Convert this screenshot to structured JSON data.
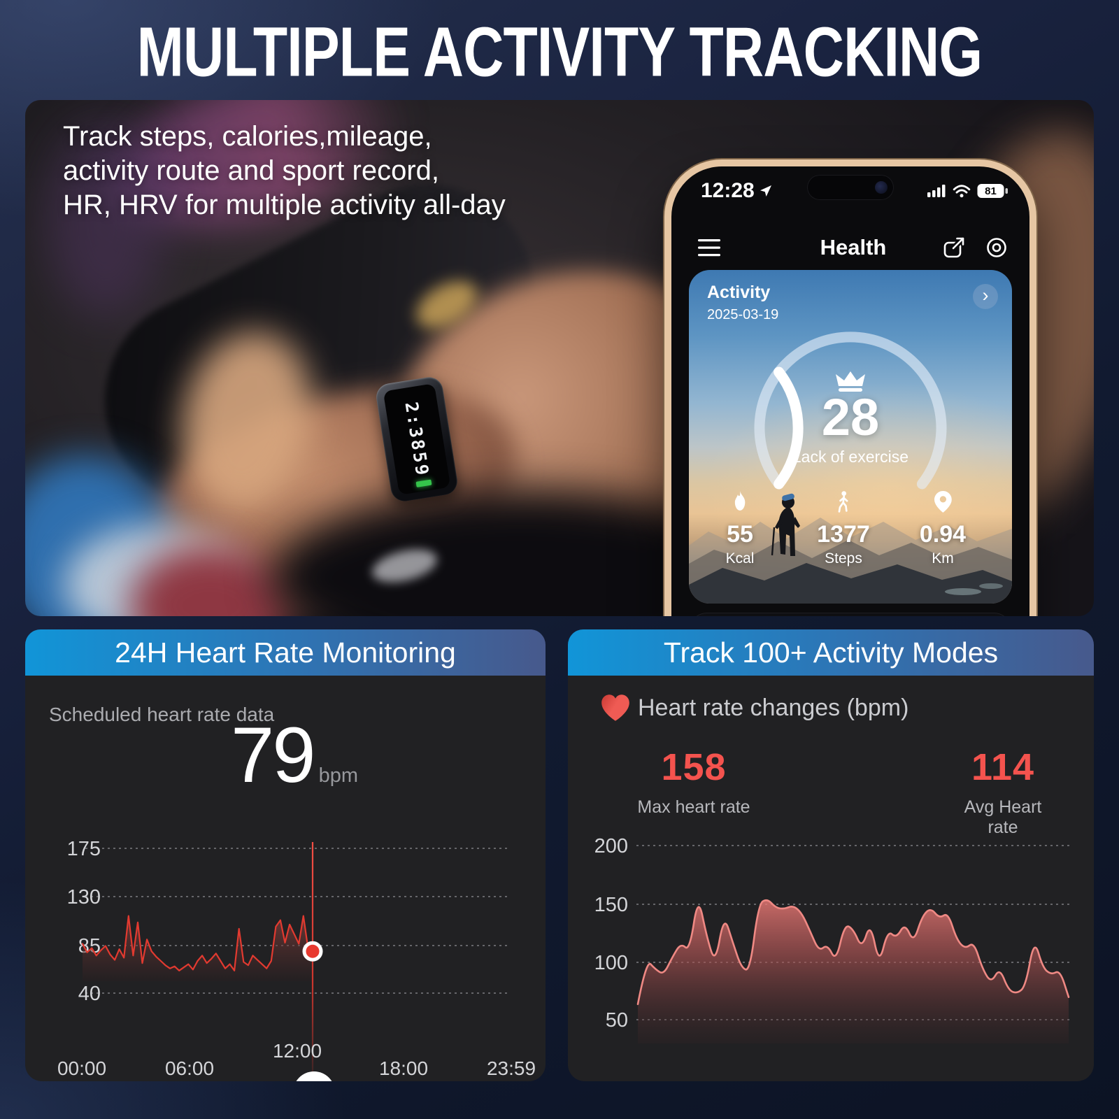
{
  "page": {
    "title": "MULTIPLE ACTIVITY TRACKING"
  },
  "hero": {
    "caption_lines": [
      "Track steps, calories,mileage,",
      "activity route and sport record,",
      "HR, HRV  for multiple activity all-day"
    ],
    "ring_display": "2:3859",
    "phone": {
      "status": {
        "time": "12:28",
        "battery": "81"
      },
      "app_title": "Health",
      "activity_card": {
        "title": "Activity",
        "date": "2025-03-19",
        "score": "28",
        "score_label": "Lack of exercise",
        "stats": [
          {
            "icon": "flame-icon",
            "value": "55",
            "label": "Kcal"
          },
          {
            "icon": "walker-icon",
            "value": "1377",
            "label": "Steps"
          },
          {
            "icon": "location-pin-icon",
            "value": "0.94",
            "label": "Km"
          }
        ]
      }
    }
  },
  "left_panel": {
    "header": "24H Heart Rate Monitoring",
    "subtitle": "Scheduled heart rate data",
    "value": "79",
    "unit": "bpm"
  },
  "right_panel": {
    "header": "Track 100+ Activity Modes",
    "legend": "Heart rate changes (bpm)",
    "max": {
      "value": "158",
      "label": "Max heart rate"
    },
    "avg": {
      "value": "114",
      "label": "Avg Heart rate"
    }
  },
  "glyphs": {
    "chevron_right": "›"
  },
  "colors": {
    "header_gradient_left": "#1195d8",
    "header_gradient_right": "#47598c",
    "heart_red": "#e8453e",
    "line_red": "#e23a30",
    "area_pink": "#ef8984",
    "accent_value_red": "#f4534e",
    "phone_frame_gold": "#e6c6a3"
  },
  "chart_data": [
    {
      "id": "hr24-chart",
      "type": "line",
      "title": "Scheduled heart rate data",
      "ylabel": "bpm",
      "current_value": 79,
      "yticks": [
        175,
        130,
        85,
        40
      ],
      "xticks": [
        "00:00",
        "06:00",
        "12:00",
        "18:00",
        "23:59"
      ],
      "ylim": [
        40,
        175
      ],
      "grid": "dotted-horizontal",
      "legend_position": "none",
      "line_color": "#e23a30",
      "cursor": {
        "at": "12:00",
        "value": 79
      },
      "values": [
        86,
        78,
        82,
        75,
        80,
        84,
        76,
        71,
        81,
        73,
        112,
        75,
        106,
        68,
        90,
        79,
        74,
        70,
        66,
        63,
        65,
        61,
        64,
        67,
        62,
        70,
        75,
        68,
        72,
        77,
        70,
        63,
        67,
        61,
        100,
        69,
        66,
        75,
        71,
        67,
        63,
        70,
        102,
        108,
        87,
        104,
        95,
        86,
        112,
        82,
        79
      ]
    },
    {
      "id": "modes-chart",
      "type": "area",
      "title": "Heart rate changes (bpm)",
      "max_heart_rate": 158,
      "avg_heart_rate": 114,
      "yticks": [
        200,
        150,
        100,
        50
      ],
      "ylim": [
        50,
        200
      ],
      "grid": "dotted-horizontal",
      "legend_position": "none",
      "line_color": "#ef8984",
      "values": [
        65,
        103,
        95,
        90,
        105,
        117,
        110,
        158,
        122,
        99,
        141,
        118,
        96,
        93,
        150,
        155,
        147,
        146,
        149,
        143,
        127,
        110,
        116,
        101,
        133,
        129,
        112,
        135,
        98,
        128,
        121,
        134,
        117,
        140,
        147,
        138,
        143,
        120,
        112,
        118,
        95,
        83,
        96,
        77,
        74,
        80,
        121,
        96,
        90,
        94,
        71
      ]
    }
  ]
}
